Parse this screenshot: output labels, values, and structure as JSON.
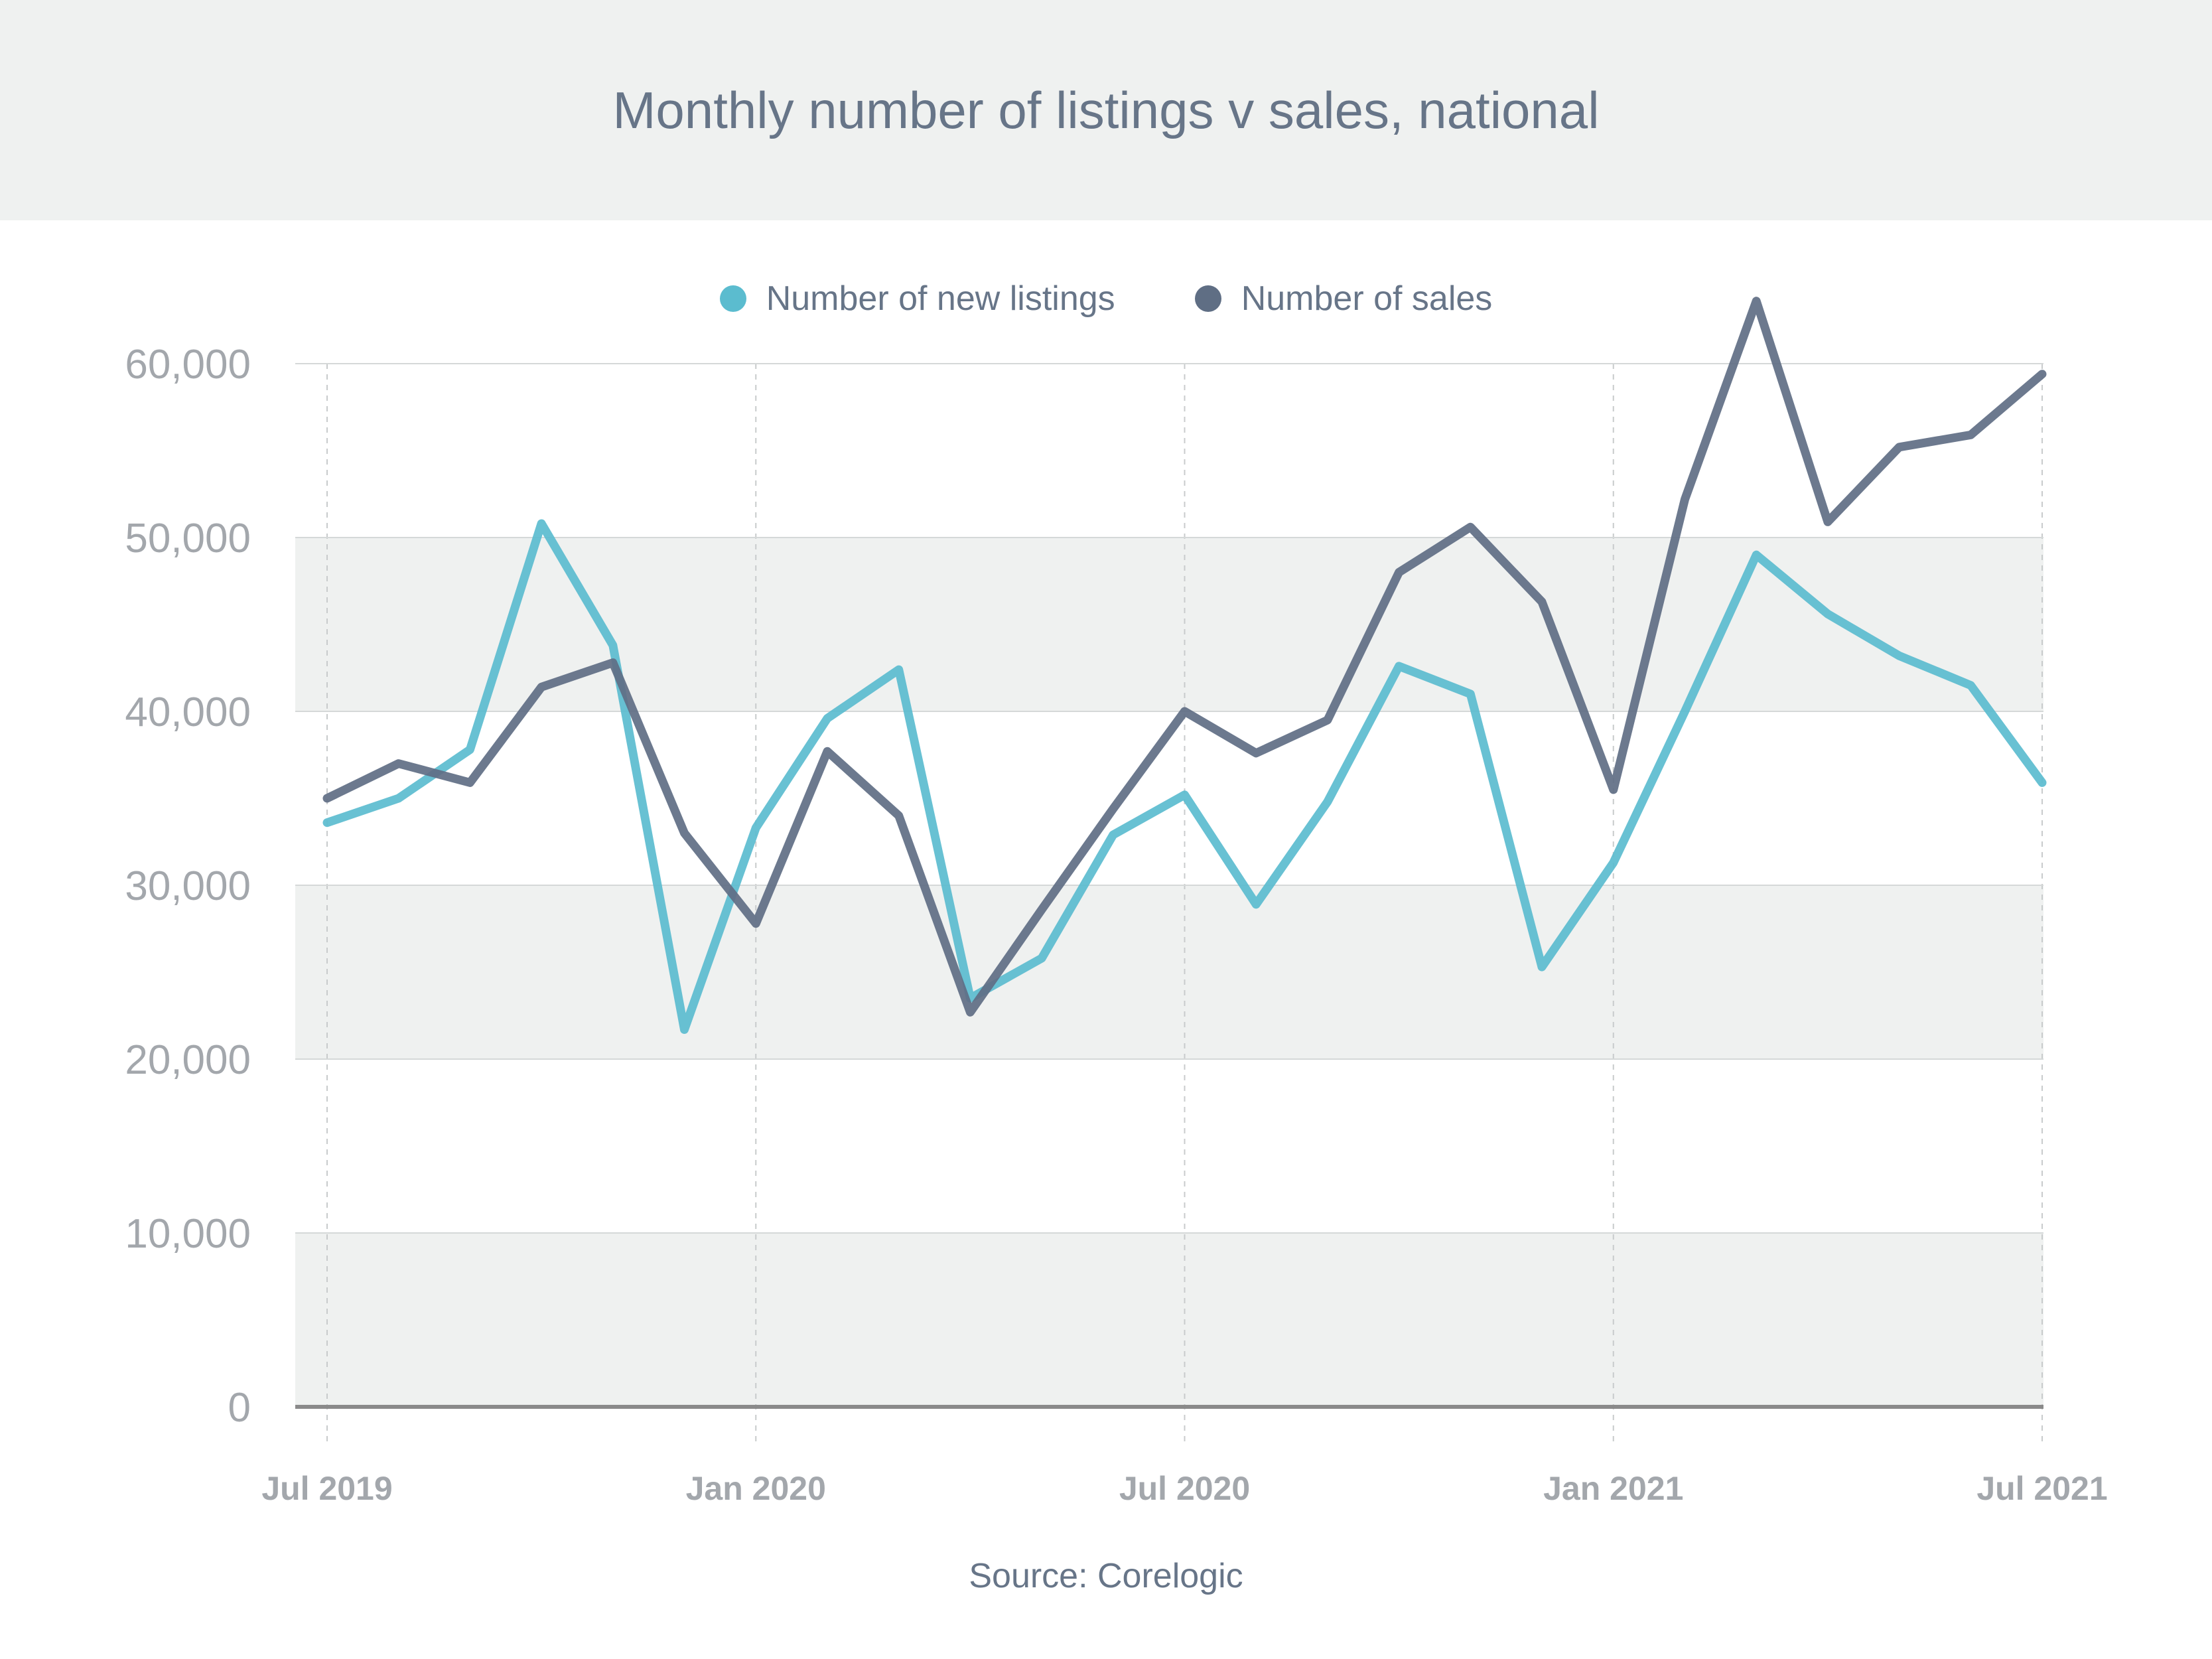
{
  "header": {
    "title": "Monthly number of listings v sales, national"
  },
  "legend": {
    "items": [
      {
        "label": "Number of new listings",
        "color": "#5bbccf"
      },
      {
        "label": "Number of sales",
        "color": "#5f6e84"
      }
    ]
  },
  "source": "Source: Corelogic",
  "chart_data": {
    "type": "line",
    "title": "Monthly number of listings v sales, national",
    "xlabel": "",
    "ylabel": "",
    "x": [
      "Jul 2019",
      "Aug 2019",
      "Sep 2019",
      "Oct 2019",
      "Nov 2019",
      "Dec 2019",
      "Jan 2020",
      "Feb 2020",
      "Mar 2020",
      "Apr 2020",
      "May 2020",
      "Jun 2020",
      "Jul 2020",
      "Aug 2020",
      "Sep 2020",
      "Oct 2020",
      "Nov 2020",
      "Dec 2020",
      "Jan 2021",
      "Feb 2021",
      "Mar 2021",
      "Apr 2021",
      "May 2021",
      "Jun 2021",
      "Jul 2021"
    ],
    "x_ticks": [
      "Jul 2019",
      "Jan 2020",
      "Jul 2020",
      "Jan 2021",
      "Jul 2021"
    ],
    "ylim": [
      0,
      60000
    ],
    "y_ticks": [
      0,
      10000,
      20000,
      30000,
      40000,
      50000,
      60000
    ],
    "y_tick_labels": [
      "0",
      "10,000",
      "20,000",
      "30,000",
      "40,000",
      "50,000",
      "60,000"
    ],
    "grid": "horizontal bands, vertical dashed",
    "legend_position": "top",
    "series": [
      {
        "name": "Number of new listings",
        "color": "#5bbccf",
        "values": [
          33600,
          35000,
          37800,
          50800,
          43800,
          21700,
          33300,
          39600,
          42400,
          23500,
          25800,
          32900,
          35200,
          28900,
          34800,
          42600,
          41000,
          25300,
          31300,
          40000,
          49000,
          45600,
          43200,
          41500,
          35900
        ]
      },
      {
        "name": "Number of sales",
        "color": "#5f6e84",
        "values": [
          35000,
          37000,
          35900,
          41400,
          42800,
          33000,
          27800,
          37700,
          34000,
          22700,
          28600,
          34400,
          40000,
          37600,
          39500,
          48000,
          50600,
          46300,
          35500,
          52200,
          63600,
          50900,
          55200,
          55900,
          59400
        ]
      }
    ]
  }
}
